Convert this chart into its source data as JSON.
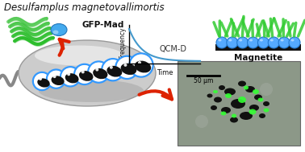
{
  "title": "Desulfamplus magnetovallimortis",
  "background_color": "#ffffff",
  "qcm_label": "QCM-D",
  "time_label": "Time",
  "freq_label": "Frequency",
  "gfp_label": "GFP-Mad",
  "magnetite_label": "Magnetite",
  "scale_label": "50 μm",
  "bacterium_color_light": "#e8e8e8",
  "bacterium_color_dark": "#b0b0b0",
  "flagellum_color": "#888888",
  "magnetosome_fill": "#111111",
  "magnetosome_ring": "#3399ff",
  "qcm_curve_color": "#4499cc",
  "arrow_color": "#dd2200",
  "gfp_protein_color": "#22bb22",
  "gfp_blob_color": "#44aaee",
  "magnetite_sphere_color": "#55aaff",
  "magnetite_rod_color": "#33cc33",
  "microscopy_bg": "#8a9888",
  "scale_bar_color": "#111111"
}
